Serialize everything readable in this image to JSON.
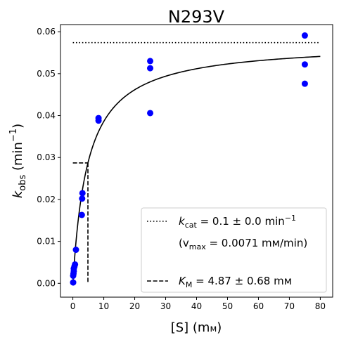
{
  "chart_data": {
    "type": "scatter",
    "title": "N293V",
    "xlabel": {
      "prefix": "[S] (m",
      "unit": "м",
      "suffix": ")"
    },
    "ylabel": {
      "base": "k",
      "sub": "obs",
      "unit": " (min",
      "sup": "−1",
      "close": ")"
    },
    "xlim": [
      -4,
      84
    ],
    "ylim": [
      -0.0033,
      0.0617
    ],
    "x_ticks": [
      0,
      10,
      20,
      30,
      40,
      50,
      60,
      70,
      80
    ],
    "y_ticks": [
      0.0,
      0.01,
      0.02,
      0.03,
      0.04,
      0.05,
      0.06
    ],
    "y_tick_labels": [
      "0.00",
      "0.01",
      "0.02",
      "0.03",
      "0.04",
      "0.05",
      "0.06"
    ],
    "grid": false,
    "series": [
      {
        "kind": "points",
        "color": "#0000ff",
        "x": [
          0.1,
          0.1,
          0.2,
          0.3,
          0.3,
          0.5,
          0.7,
          1.0,
          2.9,
          3.0,
          3.1,
          8.3,
          8.3,
          25,
          25,
          25,
          75,
          75,
          75
        ],
        "y": [
          0.0002,
          0.0018,
          0.0023,
          0.0029,
          0.0035,
          0.004,
          0.0045,
          0.008,
          0.0163,
          0.0202,
          0.0215,
          0.0388,
          0.0394,
          0.0406,
          0.0513,
          0.053,
          0.0476,
          0.0522,
          0.0591
        ]
      },
      {
        "kind": "mm-fit",
        "color": "#000000",
        "vmax": 0.0574,
        "km": 4.87,
        "x_range": [
          0,
          80
        ]
      },
      {
        "kind": "hline-dotted",
        "y": 0.0574,
        "x_range": [
          0,
          80
        ]
      },
      {
        "kind": "km-dashed",
        "x": 4.87,
        "y": 0.0287,
        "x_start": 0
      }
    ],
    "legend": {
      "placement": "lower-right",
      "entries": [
        {
          "style": "dotted",
          "base": "k",
          "sub": "cat",
          "text": " = 0.1 ± 0.0 min",
          "sup": "−1"
        },
        {
          "style": "none",
          "text": "(v",
          "sub": "max",
          "text2": " = 0.0071 mм/min)"
        },
        {
          "style": "dashed",
          "base": "K",
          "sub": "M",
          "text": " = 4.87 ± 0.68 mм"
        }
      ]
    }
  }
}
